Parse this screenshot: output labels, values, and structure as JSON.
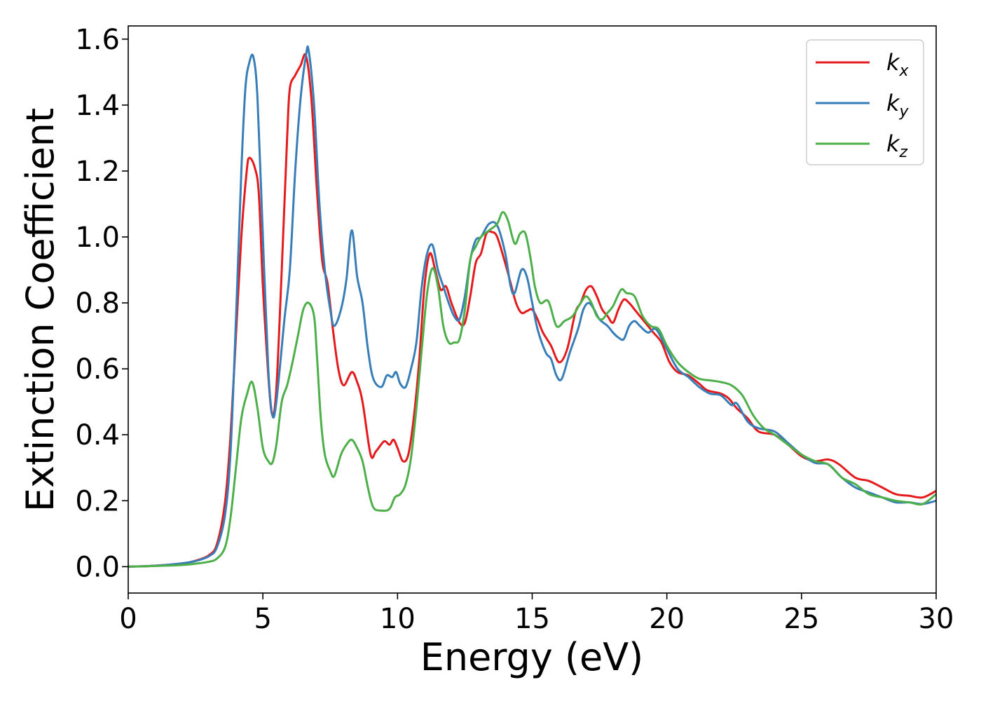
{
  "chart_data": {
    "type": "line",
    "xlabel": "Energy (eV)",
    "ylabel": "Extinction Coefficient",
    "xlim": [
      0,
      30
    ],
    "ylim": [
      -0.08,
      1.64
    ],
    "xticks": [
      0,
      5,
      10,
      15,
      20,
      25,
      30
    ],
    "yticks": [
      0.0,
      0.2,
      0.4,
      0.6,
      0.8,
      1.0,
      1.2,
      1.4,
      1.6
    ],
    "grid": false,
    "legend_position": "top-right",
    "series": [
      {
        "name": "k",
        "subscript": "x",
        "color": "#e41a1c",
        "points": [
          [
            0,
            0.0
          ],
          [
            1,
            0.003
          ],
          [
            2,
            0.01
          ],
          [
            2.5,
            0.018
          ],
          [
            3,
            0.035
          ],
          [
            3.3,
            0.07
          ],
          [
            3.6,
            0.2
          ],
          [
            3.8,
            0.4
          ],
          [
            4.0,
            0.7
          ],
          [
            4.2,
            1.0
          ],
          [
            4.4,
            1.2
          ],
          [
            4.5,
            1.24
          ],
          [
            4.7,
            1.21
          ],
          [
            4.85,
            1.13
          ],
          [
            5.0,
            0.85
          ],
          [
            5.2,
            0.58
          ],
          [
            5.35,
            0.46
          ],
          [
            5.5,
            0.54
          ],
          [
            5.7,
            0.9
          ],
          [
            5.9,
            1.3
          ],
          [
            6.0,
            1.45
          ],
          [
            6.2,
            1.49
          ],
          [
            6.4,
            1.52
          ],
          [
            6.6,
            1.55
          ],
          [
            6.8,
            1.42
          ],
          [
            7.0,
            1.15
          ],
          [
            7.2,
            0.93
          ],
          [
            7.4,
            0.86
          ],
          [
            7.6,
            0.72
          ],
          [
            7.8,
            0.6
          ],
          [
            8.0,
            0.55
          ],
          [
            8.3,
            0.59
          ],
          [
            8.5,
            0.56
          ],
          [
            8.7,
            0.5
          ],
          [
            9.0,
            0.34
          ],
          [
            9.2,
            0.35
          ],
          [
            9.5,
            0.38
          ],
          [
            9.7,
            0.37
          ],
          [
            9.85,
            0.385
          ],
          [
            10.0,
            0.36
          ],
          [
            10.2,
            0.32
          ],
          [
            10.4,
            0.34
          ],
          [
            10.6,
            0.45
          ],
          [
            10.8,
            0.62
          ],
          [
            11.0,
            0.85
          ],
          [
            11.2,
            0.95
          ],
          [
            11.4,
            0.9
          ],
          [
            11.6,
            0.84
          ],
          [
            11.8,
            0.85
          ],
          [
            12.0,
            0.8
          ],
          [
            12.3,
            0.74
          ],
          [
            12.5,
            0.74
          ],
          [
            12.7,
            0.82
          ],
          [
            12.9,
            0.92
          ],
          [
            13.1,
            0.95
          ],
          [
            13.3,
            1.01
          ],
          [
            13.5,
            1.015
          ],
          [
            13.7,
            1.0
          ],
          [
            14.0,
            0.92
          ],
          [
            14.2,
            0.86
          ],
          [
            14.4,
            0.8
          ],
          [
            14.6,
            0.77
          ],
          [
            14.8,
            0.775
          ],
          [
            15.0,
            0.78
          ],
          [
            15.2,
            0.75
          ],
          [
            15.4,
            0.71
          ],
          [
            15.7,
            0.67
          ],
          [
            16.0,
            0.62
          ],
          [
            16.3,
            0.66
          ],
          [
            16.6,
            0.77
          ],
          [
            16.8,
            0.8
          ],
          [
            17.0,
            0.84
          ],
          [
            17.2,
            0.85
          ],
          [
            17.4,
            0.82
          ],
          [
            17.6,
            0.78
          ],
          [
            17.8,
            0.76
          ],
          [
            18.0,
            0.74
          ],
          [
            18.2,
            0.78
          ],
          [
            18.4,
            0.81
          ],
          [
            18.6,
            0.8
          ],
          [
            18.8,
            0.78
          ],
          [
            19.0,
            0.76
          ],
          [
            19.2,
            0.74
          ],
          [
            19.5,
            0.71
          ],
          [
            19.8,
            0.68
          ],
          [
            20.1,
            0.62
          ],
          [
            20.4,
            0.59
          ],
          [
            20.8,
            0.58
          ],
          [
            21.2,
            0.555
          ],
          [
            21.5,
            0.535
          ],
          [
            22.0,
            0.525
          ],
          [
            22.3,
            0.51
          ],
          [
            22.6,
            0.48
          ],
          [
            23.0,
            0.45
          ],
          [
            23.4,
            0.41
          ],
          [
            24.0,
            0.4
          ],
          [
            24.5,
            0.37
          ],
          [
            25.0,
            0.335
          ],
          [
            25.5,
            0.32
          ],
          [
            26.0,
            0.325
          ],
          [
            26.4,
            0.31
          ],
          [
            27.0,
            0.27
          ],
          [
            27.5,
            0.26
          ],
          [
            28.0,
            0.24
          ],
          [
            28.5,
            0.22
          ],
          [
            29.0,
            0.215
          ],
          [
            29.5,
            0.21
          ],
          [
            30.0,
            0.23
          ]
        ]
      },
      {
        "name": "k",
        "subscript": "y",
        "color": "#377eb8",
        "points": [
          [
            0,
            0.0
          ],
          [
            1,
            0.003
          ],
          [
            2,
            0.01
          ],
          [
            2.5,
            0.017
          ],
          [
            3,
            0.032
          ],
          [
            3.3,
            0.06
          ],
          [
            3.6,
            0.16
          ],
          [
            3.8,
            0.35
          ],
          [
            4.0,
            0.75
          ],
          [
            4.2,
            1.2
          ],
          [
            4.35,
            1.45
          ],
          [
            4.5,
            1.53
          ],
          [
            4.65,
            1.545
          ],
          [
            4.8,
            1.42
          ],
          [
            5.0,
            1.0
          ],
          [
            5.2,
            0.6
          ],
          [
            5.35,
            0.46
          ],
          [
            5.5,
            0.5
          ],
          [
            5.8,
            0.75
          ],
          [
            6.0,
            0.9
          ],
          [
            6.2,
            1.2
          ],
          [
            6.4,
            1.42
          ],
          [
            6.6,
            1.55
          ],
          [
            6.7,
            1.565
          ],
          [
            6.9,
            1.4
          ],
          [
            7.1,
            1.1
          ],
          [
            7.3,
            0.9
          ],
          [
            7.5,
            0.78
          ],
          [
            7.65,
            0.73
          ],
          [
            7.9,
            0.78
          ],
          [
            8.1,
            0.87
          ],
          [
            8.3,
            1.02
          ],
          [
            8.5,
            0.88
          ],
          [
            8.7,
            0.8
          ],
          [
            8.9,
            0.66
          ],
          [
            9.1,
            0.57
          ],
          [
            9.4,
            0.545
          ],
          [
            9.6,
            0.58
          ],
          [
            9.8,
            0.575
          ],
          [
            9.95,
            0.59
          ],
          [
            10.1,
            0.555
          ],
          [
            10.3,
            0.545
          ],
          [
            10.5,
            0.6
          ],
          [
            10.7,
            0.68
          ],
          [
            10.9,
            0.85
          ],
          [
            11.1,
            0.95
          ],
          [
            11.3,
            0.975
          ],
          [
            11.5,
            0.9
          ],
          [
            11.7,
            0.85
          ],
          [
            11.9,
            0.8
          ],
          [
            12.1,
            0.76
          ],
          [
            12.3,
            0.75
          ],
          [
            12.5,
            0.82
          ],
          [
            12.7,
            0.93
          ],
          [
            12.9,
            0.99
          ],
          [
            13.1,
            1.0
          ],
          [
            13.4,
            1.04
          ],
          [
            13.7,
            1.035
          ],
          [
            14.0,
            0.95
          ],
          [
            14.2,
            0.85
          ],
          [
            14.35,
            0.83
          ],
          [
            14.6,
            0.9
          ],
          [
            14.8,
            0.88
          ],
          [
            15.0,
            0.8
          ],
          [
            15.2,
            0.72
          ],
          [
            15.5,
            0.65
          ],
          [
            15.7,
            0.63
          ],
          [
            15.9,
            0.58
          ],
          [
            16.1,
            0.57
          ],
          [
            16.4,
            0.65
          ],
          [
            16.7,
            0.72
          ],
          [
            16.9,
            0.78
          ],
          [
            17.1,
            0.8
          ],
          [
            17.3,
            0.78
          ],
          [
            17.5,
            0.75
          ],
          [
            17.8,
            0.73
          ],
          [
            18.0,
            0.71
          ],
          [
            18.2,
            0.695
          ],
          [
            18.4,
            0.69
          ],
          [
            18.6,
            0.73
          ],
          [
            18.8,
            0.745
          ],
          [
            19.0,
            0.73
          ],
          [
            19.3,
            0.71
          ],
          [
            19.6,
            0.72
          ],
          [
            20.0,
            0.66
          ],
          [
            20.4,
            0.6
          ],
          [
            20.8,
            0.575
          ],
          [
            21.2,
            0.545
          ],
          [
            21.6,
            0.525
          ],
          [
            22.0,
            0.52
          ],
          [
            22.4,
            0.49
          ],
          [
            22.6,
            0.495
          ],
          [
            23.0,
            0.44
          ],
          [
            23.4,
            0.42
          ],
          [
            24.0,
            0.41
          ],
          [
            24.5,
            0.375
          ],
          [
            25.0,
            0.34
          ],
          [
            25.5,
            0.315
          ],
          [
            26.0,
            0.31
          ],
          [
            26.5,
            0.27
          ],
          [
            27.0,
            0.24
          ],
          [
            27.5,
            0.225
          ],
          [
            28.0,
            0.21
          ],
          [
            28.5,
            0.195
          ],
          [
            29.0,
            0.195
          ],
          [
            29.5,
            0.19
          ],
          [
            30.0,
            0.2
          ]
        ]
      },
      {
        "name": "k",
        "subscript": "z",
        "color": "#4daf4a",
        "points": [
          [
            0,
            0.0
          ],
          [
            1,
            0.002
          ],
          [
            2,
            0.005
          ],
          [
            2.5,
            0.009
          ],
          [
            3,
            0.015
          ],
          [
            3.3,
            0.025
          ],
          [
            3.6,
            0.06
          ],
          [
            3.8,
            0.15
          ],
          [
            4.0,
            0.3
          ],
          [
            4.2,
            0.45
          ],
          [
            4.4,
            0.52
          ],
          [
            4.6,
            0.56
          ],
          [
            4.8,
            0.48
          ],
          [
            5.0,
            0.36
          ],
          [
            5.2,
            0.32
          ],
          [
            5.35,
            0.315
          ],
          [
            5.5,
            0.37
          ],
          [
            5.7,
            0.5
          ],
          [
            5.9,
            0.55
          ],
          [
            6.1,
            0.62
          ],
          [
            6.3,
            0.7
          ],
          [
            6.5,
            0.78
          ],
          [
            6.7,
            0.8
          ],
          [
            6.9,
            0.76
          ],
          [
            7.0,
            0.65
          ],
          [
            7.15,
            0.45
          ],
          [
            7.3,
            0.34
          ],
          [
            7.5,
            0.29
          ],
          [
            7.65,
            0.275
          ],
          [
            7.9,
            0.34
          ],
          [
            8.1,
            0.37
          ],
          [
            8.3,
            0.385
          ],
          [
            8.5,
            0.36
          ],
          [
            8.7,
            0.32
          ],
          [
            8.9,
            0.24
          ],
          [
            9.1,
            0.18
          ],
          [
            9.4,
            0.17
          ],
          [
            9.7,
            0.175
          ],
          [
            9.9,
            0.21
          ],
          [
            10.1,
            0.22
          ],
          [
            10.3,
            0.25
          ],
          [
            10.5,
            0.33
          ],
          [
            10.7,
            0.48
          ],
          [
            10.9,
            0.66
          ],
          [
            11.1,
            0.83
          ],
          [
            11.3,
            0.905
          ],
          [
            11.5,
            0.85
          ],
          [
            11.7,
            0.73
          ],
          [
            11.9,
            0.68
          ],
          [
            12.1,
            0.68
          ],
          [
            12.3,
            0.69
          ],
          [
            12.5,
            0.78
          ],
          [
            12.7,
            0.93
          ],
          [
            12.9,
            0.97
          ],
          [
            13.1,
            1.0
          ],
          [
            13.4,
            1.02
          ],
          [
            13.7,
            1.04
          ],
          [
            13.9,
            1.075
          ],
          [
            14.1,
            1.05
          ],
          [
            14.35,
            0.98
          ],
          [
            14.55,
            1.01
          ],
          [
            14.75,
            1.01
          ],
          [
            14.95,
            0.93
          ],
          [
            15.1,
            0.85
          ],
          [
            15.3,
            0.8
          ],
          [
            15.6,
            0.805
          ],
          [
            15.9,
            0.73
          ],
          [
            16.2,
            0.745
          ],
          [
            16.5,
            0.76
          ],
          [
            16.8,
            0.8
          ],
          [
            17.0,
            0.82
          ],
          [
            17.2,
            0.8
          ],
          [
            17.4,
            0.76
          ],
          [
            17.6,
            0.75
          ],
          [
            17.8,
            0.77
          ],
          [
            18.0,
            0.79
          ],
          [
            18.3,
            0.84
          ],
          [
            18.5,
            0.83
          ],
          [
            18.8,
            0.82
          ],
          [
            19.1,
            0.76
          ],
          [
            19.4,
            0.73
          ],
          [
            19.7,
            0.72
          ],
          [
            20.0,
            0.67
          ],
          [
            20.4,
            0.62
          ],
          [
            20.8,
            0.59
          ],
          [
            21.2,
            0.57
          ],
          [
            21.6,
            0.565
          ],
          [
            22.0,
            0.56
          ],
          [
            22.4,
            0.55
          ],
          [
            22.8,
            0.52
          ],
          [
            23.2,
            0.46
          ],
          [
            23.6,
            0.42
          ],
          [
            24.0,
            0.4
          ],
          [
            24.5,
            0.37
          ],
          [
            25.0,
            0.34
          ],
          [
            25.5,
            0.32
          ],
          [
            26.0,
            0.31
          ],
          [
            26.5,
            0.27
          ],
          [
            27.0,
            0.25
          ],
          [
            27.5,
            0.22
          ],
          [
            28.0,
            0.21
          ],
          [
            28.5,
            0.2
          ],
          [
            29.0,
            0.195
          ],
          [
            29.5,
            0.19
          ],
          [
            30.0,
            0.22
          ]
        ]
      }
    ]
  }
}
